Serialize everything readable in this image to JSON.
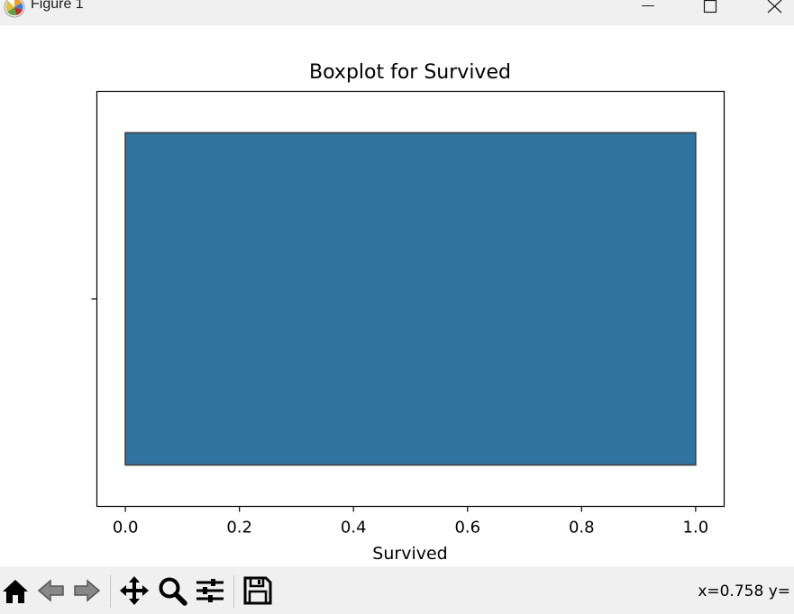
{
  "window": {
    "title": "Figure 1",
    "app_icon": "matplotlib-logo-icon",
    "controls": [
      "minimize-icon",
      "maximize-icon",
      "close-icon"
    ]
  },
  "chart_data": {
    "type": "box",
    "title": "Boxplot for Survived",
    "xlabel": "Survived",
    "ylabel": "",
    "xlim": [
      -0.05,
      1.05
    ],
    "xticks": [
      0.0,
      0.2,
      0.4,
      0.6,
      0.8,
      1.0
    ],
    "xtick_labels": [
      "0.0",
      "0.2",
      "0.4",
      "0.6",
      "0.8",
      "1.0"
    ],
    "orientation": "horizontal",
    "box": {
      "min": 0.0,
      "q1": 0.0,
      "median": 0.0,
      "q3": 1.0,
      "max": 1.0
    },
    "box_color": "#3274a1",
    "edge_color": "#3f3f3f",
    "grid": false
  },
  "toolbar": {
    "tools": [
      {
        "name": "home-icon",
        "label": "Home"
      },
      {
        "name": "back-arrow-icon",
        "label": "Back"
      },
      {
        "name": "forward-arrow-icon",
        "label": "Forward"
      },
      {
        "name": "pan-move-icon",
        "label": "Pan"
      },
      {
        "name": "zoom-magnifier-icon",
        "label": "Zoom"
      },
      {
        "name": "configure-subplots-icon",
        "label": "Subplots"
      },
      {
        "name": "save-floppy-icon",
        "label": "Save"
      }
    ],
    "coords_text": "x=0.758 y="
  }
}
